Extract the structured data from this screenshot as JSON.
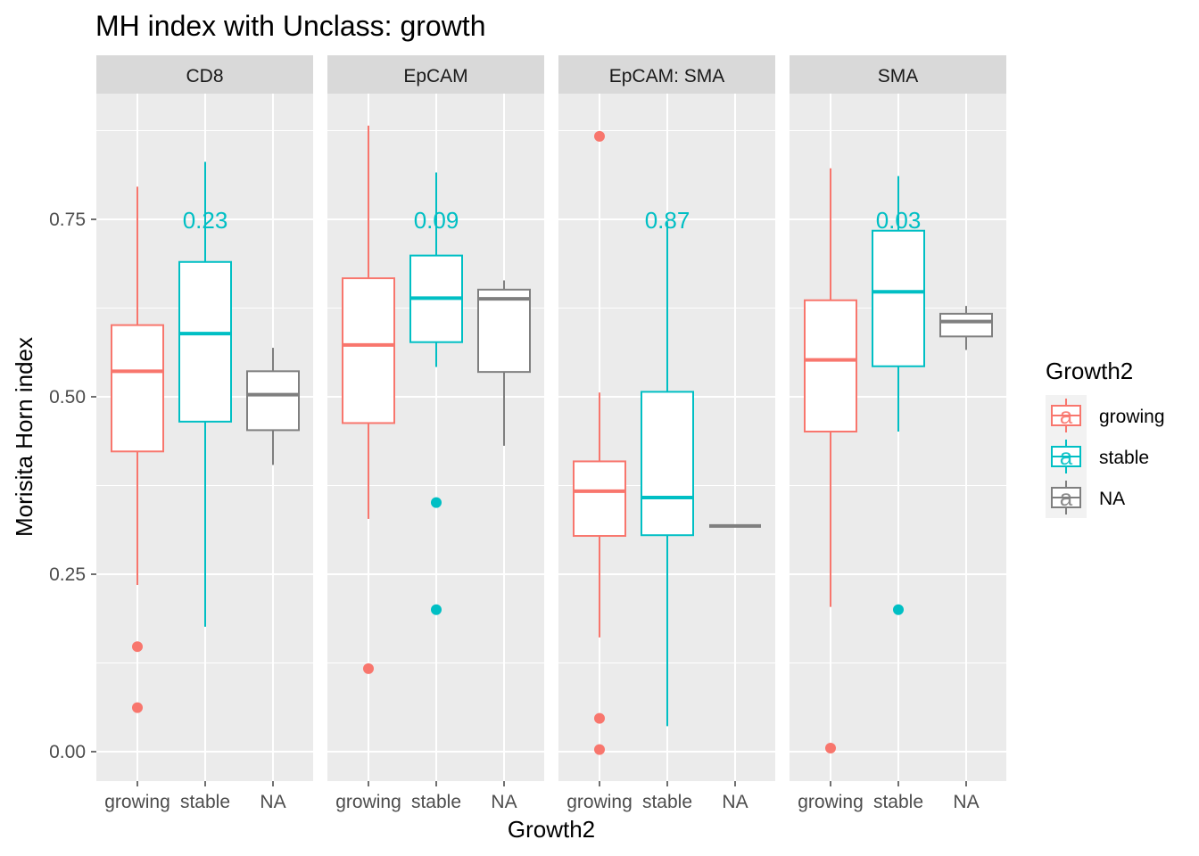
{
  "chart_data": {
    "type": "boxplot",
    "title": "MH index with Unclass: growth",
    "xlabel": "Growth2",
    "ylabel": "Morisita Horn index",
    "ylim": [
      -0.04,
      0.92
    ],
    "yticks": [
      0.0,
      0.25,
      0.5,
      0.75
    ],
    "ytick_labels": [
      "0.00",
      "0.25",
      "0.50",
      "0.75"
    ],
    "categories": [
      "growing",
      "stable",
      "NA"
    ],
    "grid": true,
    "legend": {
      "title": "Growth2",
      "placement": "right",
      "key_glyph": "a",
      "entries": [
        {
          "name": "growing",
          "color": "#F8766D"
        },
        {
          "name": "stable",
          "color": "#00BFC4"
        },
        {
          "name": "NA",
          "color": "#7F7F7F"
        }
      ]
    },
    "panels": [
      {
        "facet": "CD8",
        "pvalue": "0.23",
        "boxes": [
          {
            "category": "growing",
            "lower_whisker": 0.235,
            "q1": 0.423,
            "median": 0.536,
            "q3": 0.601,
            "upper_whisker": 0.796,
            "outliers": [
              0.148,
              0.062
            ]
          },
          {
            "category": "stable",
            "lower_whisker": 0.176,
            "q1": 0.465,
            "median": 0.589,
            "q3": 0.69,
            "upper_whisker": 0.831,
            "outliers": []
          },
          {
            "category": "NA",
            "lower_whisker": 0.404,
            "q1": 0.453,
            "median": 0.503,
            "q3": 0.536,
            "upper_whisker": 0.569,
            "outliers": []
          }
        ]
      },
      {
        "facet": "EpCAM",
        "pvalue": "0.09",
        "boxes": [
          {
            "category": "growing",
            "lower_whisker": 0.328,
            "q1": 0.463,
            "median": 0.573,
            "q3": 0.667,
            "upper_whisker": 0.882,
            "outliers": [
              0.117
            ]
          },
          {
            "category": "stable",
            "lower_whisker": 0.542,
            "q1": 0.577,
            "median": 0.639,
            "q3": 0.699,
            "upper_whisker": 0.816,
            "outliers": [
              0.351,
              0.2
            ]
          },
          {
            "category": "NA",
            "lower_whisker": 0.431,
            "q1": 0.535,
            "median": 0.638,
            "q3": 0.651,
            "upper_whisker": 0.664,
            "outliers": []
          }
        ]
      },
      {
        "facet": "EpCAM: SMA",
        "pvalue": "0.87",
        "boxes": [
          {
            "category": "growing",
            "lower_whisker": 0.161,
            "q1": 0.304,
            "median": 0.367,
            "q3": 0.409,
            "upper_whisker": 0.506,
            "outliers": [
              0.867,
              0.047,
              0.003
            ]
          },
          {
            "category": "stable",
            "lower_whisker": 0.036,
            "q1": 0.305,
            "median": 0.358,
            "q3": 0.507,
            "upper_whisker": 0.746,
            "outliers": []
          },
          {
            "category": "NA",
            "lower_whisker": 0.318,
            "q1": 0.318,
            "median": 0.318,
            "q3": 0.318,
            "upper_whisker": 0.318,
            "outliers": []
          }
        ]
      },
      {
        "facet": "SMA",
        "pvalue": "0.03",
        "boxes": [
          {
            "category": "growing",
            "lower_whisker": 0.204,
            "q1": 0.451,
            "median": 0.552,
            "q3": 0.636,
            "upper_whisker": 0.822,
            "outliers": [
              0.005
            ]
          },
          {
            "category": "stable",
            "lower_whisker": 0.451,
            "q1": 0.543,
            "median": 0.648,
            "q3": 0.734,
            "upper_whisker": 0.811,
            "outliers": [
              0.2
            ]
          },
          {
            "category": "NA",
            "lower_whisker": 0.566,
            "q1": 0.585,
            "median": 0.606,
            "q3": 0.617,
            "upper_whisker": 0.628,
            "outliers": []
          }
        ]
      }
    ]
  }
}
